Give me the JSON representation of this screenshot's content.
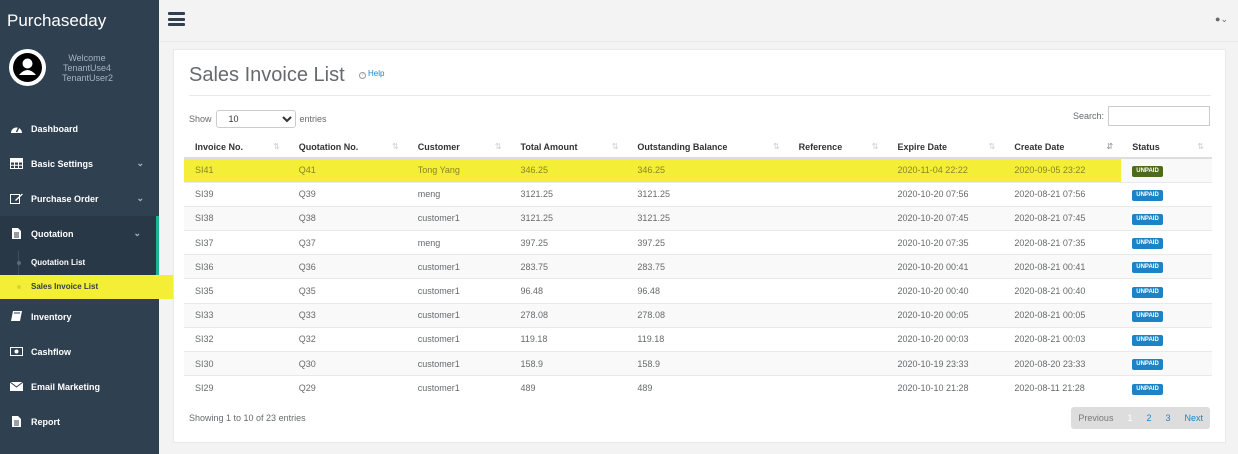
{
  "brand": "Purchaseday",
  "profile": {
    "welcome": "Welcome",
    "line1": "TenantUse4",
    "line2": "TenantUser2"
  },
  "nav": [
    {
      "label": "Dashboard",
      "icon": "dashboard-icon"
    },
    {
      "label": "Basic Settings",
      "icon": "table-icon"
    },
    {
      "label": "Purchase Order",
      "icon": "edit-icon"
    },
    {
      "label": "Quotation",
      "icon": "file-icon"
    },
    {
      "label": "Inventory",
      "icon": "book-icon"
    },
    {
      "label": "Cashflow",
      "icon": "money-icon"
    },
    {
      "label": "Email Marketing",
      "icon": "envelope-icon"
    },
    {
      "label": "Report",
      "icon": "file-icon"
    }
  ],
  "subnav": [
    {
      "label": "Quotation List"
    },
    {
      "label": "Sales Invoice List"
    }
  ],
  "page": {
    "title": "Sales Invoice List",
    "help": "Help"
  },
  "controls": {
    "show": "Show",
    "entries_value": "10",
    "entries": "entries",
    "search": "Search:"
  },
  "table": {
    "columns": [
      "Invoice No.",
      "Quotation No.",
      "Customer",
      "Total Amount",
      "Outstanding Balance",
      "Reference",
      "Expire Date",
      "Create Date",
      "Status"
    ],
    "rows": [
      [
        "SI41",
        "Q41",
        "Tong Yang",
        "346.25",
        "346.25",
        "",
        "2020-11-04 22:22",
        "2020-09-05 23:22",
        "UNPAID"
      ],
      [
        "SI39",
        "Q39",
        "meng",
        "3121.25",
        "3121.25",
        "",
        "2020-10-20 07:56",
        "2020-08-21 07:56",
        "UNPAID"
      ],
      [
        "SI38",
        "Q38",
        "customer1",
        "3121.25",
        "3121.25",
        "",
        "2020-10-20 07:45",
        "2020-08-21 07:45",
        "UNPAID"
      ],
      [
        "SI37",
        "Q37",
        "meng",
        "397.25",
        "397.25",
        "",
        "2020-10-20 07:35",
        "2020-08-21 07:35",
        "UNPAID"
      ],
      [
        "SI36",
        "Q36",
        "customer1",
        "283.75",
        "283.75",
        "",
        "2020-10-20 00:41",
        "2020-08-21 00:41",
        "UNPAID"
      ],
      [
        "SI35",
        "Q35",
        "customer1",
        "96.48",
        "96.48",
        "",
        "2020-10-20 00:40",
        "2020-08-21 00:40",
        "UNPAID"
      ],
      [
        "SI33",
        "Q33",
        "customer1",
        "278.08",
        "278.08",
        "",
        "2020-10-20 00:05",
        "2020-08-21 00:05",
        "UNPAID"
      ],
      [
        "SI32",
        "Q32",
        "customer1",
        "119.18",
        "119.18",
        "",
        "2020-10-20 00:03",
        "2020-08-21 00:03",
        "UNPAID"
      ],
      [
        "SI30",
        "Q30",
        "customer1",
        "158.9",
        "158.9",
        "",
        "2020-10-19 23:33",
        "2020-08-20 23:33",
        "UNPAID"
      ],
      [
        "SI29",
        "Q29",
        "customer1",
        "489",
        "489",
        "",
        "2020-10-10 21:28",
        "2020-08-11 21:28",
        "UNPAID"
      ]
    ]
  },
  "footer": {
    "showing": "Showing 1 to 10 of 23 entries",
    "previous": "Previous",
    "pages": [
      "1",
      "2",
      "3"
    ],
    "next": "Next"
  },
  "colors": {
    "sidebar": "#2f4050",
    "accent": "#1ab394",
    "highlight": "#f4ef36",
    "badge": "#1c84c6"
  }
}
